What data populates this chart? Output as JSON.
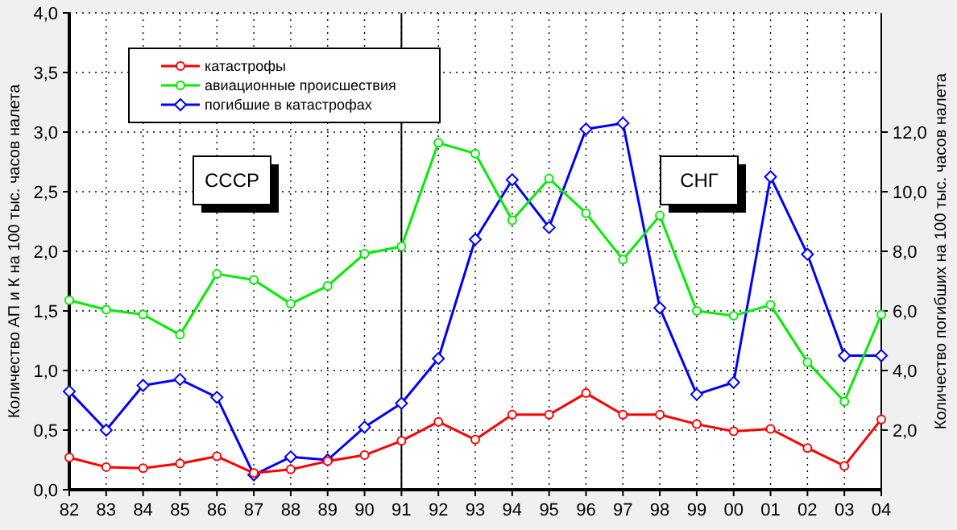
{
  "chart_data": {
    "type": "line",
    "ylabel": "Количество АП и К на 100 тыс. часов налета",
    "y2label": "Количество погибших на 100 тыс. часов налета",
    "categories": [
      "82",
      "83",
      "84",
      "85",
      "86",
      "87",
      "88",
      "89",
      "90",
      "91",
      "92",
      "93",
      "94",
      "95",
      "96",
      "97",
      "98",
      "99",
      "00",
      "01",
      "02",
      "03",
      "04"
    ],
    "series": [
      {
        "name": "катастрофы",
        "color": "#ff0000",
        "marker": "circle",
        "values": [
          0.27,
          0.19,
          0.18,
          0.22,
          0.28,
          0.14,
          0.17,
          0.24,
          0.29,
          0.41,
          0.57,
          0.42,
          0.63,
          0.63,
          0.81,
          0.63,
          0.63,
          0.55,
          0.49,
          0.51,
          0.35,
          0.2,
          0.59
        ]
      },
      {
        "name": "авиационные происшествия",
        "color": "#00ee00",
        "marker": "circle",
        "values": [
          1.59,
          1.51,
          1.47,
          1.3,
          1.81,
          1.76,
          1.56,
          1.71,
          1.98,
          2.04,
          2.91,
          2.82,
          2.26,
          2.61,
          2.32,
          1.93,
          2.3,
          1.5,
          1.46,
          1.55,
          1.07,
          0.74,
          1.47
        ]
      },
      {
        "name": "погибшие в катастрофах",
        "color": "#0000ff",
        "marker": "diamond",
        "axis": "y2",
        "values": [
          3.3,
          2.0,
          3.5,
          3.7,
          3.1,
          0.5,
          1.1,
          1.0,
          2.1,
          2.9,
          4.4,
          8.4,
          10.4,
          8.8,
          12.1,
          12.3,
          6.1,
          3.2,
          3.6,
          10.5,
          7.9,
          4.5,
          4.5
        ]
      }
    ],
    "ylim": [
      0,
      4
    ],
    "yticks": [
      {
        "value": 0,
        "label": "0,0"
      },
      {
        "value": 0.5,
        "label": "0,5"
      },
      {
        "value": 1,
        "label": "1,0"
      },
      {
        "value": 1.5,
        "label": "1,5"
      },
      {
        "value": 2,
        "label": "2,0"
      },
      {
        "value": 2.5,
        "label": "2,5"
      },
      {
        "value": 3,
        "label": "3,0"
      },
      {
        "value": 3.5,
        "label": "3,5"
      },
      {
        "value": 4,
        "label": "4,0"
      }
    ],
    "y2lim": [
      0,
      16
    ],
    "y2ticks": [
      {
        "value": 2,
        "label": "2,0"
      },
      {
        "value": 4,
        "label": "4,0"
      },
      {
        "value": 6,
        "label": "6,0"
      },
      {
        "value": 8,
        "label": "8,0"
      },
      {
        "value": 10,
        "label": "10,0"
      },
      {
        "value": 12,
        "label": "12,0"
      }
    ],
    "ref_lines": [
      {
        "axis": "x",
        "value": "91",
        "color": "#000000"
      }
    ],
    "annotations": [
      "СССР",
      "СНГ"
    ],
    "grid": true,
    "legend": "top left"
  }
}
